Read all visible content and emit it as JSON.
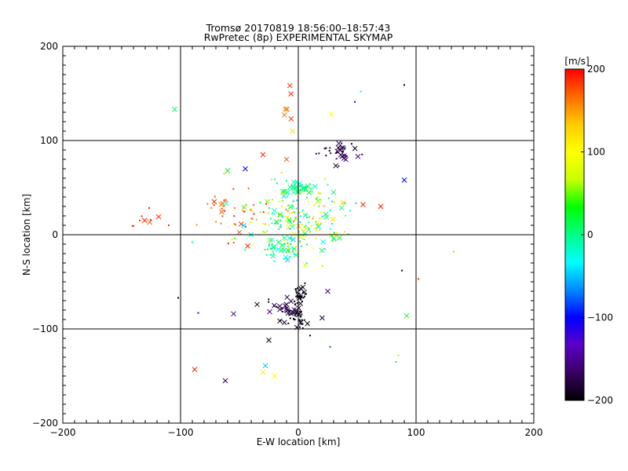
{
  "chart_data": {
    "type": "scatter",
    "title": "Tromsø 20170819 18:56:00–18:57:43",
    "subtitle": "RwPretec (8p) EXPERIMENTAL SKYMAP",
    "xlabel": "E-W location [km]",
    "ylabel": "N-S location [km]",
    "xlim": [
      -200,
      200
    ],
    "ylim": [
      -200,
      200
    ],
    "xticks": [
      "−200",
      "−100",
      "0",
      "100",
      "200"
    ],
    "xtick_values": [
      -200,
      -100,
      0,
      100,
      200
    ],
    "yticks": [
      "−200",
      "−100",
      "0",
      "100",
      "200"
    ],
    "ytick_values": [
      -200,
      -100,
      0,
      100,
      200
    ],
    "grid": true,
    "colorbar": {
      "label": "[m/s]",
      "range": [
        -200,
        200
      ],
      "ticks": [
        "200",
        "100",
        "0",
        "−100",
        "−200"
      ],
      "tick_values": [
        200,
        100,
        0,
        -100,
        -200
      ],
      "colors": [
        "#ff0000",
        "#ff6a00",
        "#ffcc00",
        "#ffff00",
        "#c8ff00",
        "#00ff00",
        "#00ff88",
        "#00ffff",
        "#0088ff",
        "#0000ff",
        "#5a00c8",
        "#3a0060",
        "#000000"
      ]
    },
    "clusters": [
      {
        "center": [
          -10,
          145
        ],
        "spread": [
          3,
          13
        ],
        "value_range": [
          150,
          200
        ],
        "count_cross": 6,
        "count_dot": 0
      },
      {
        "center": [
          33,
          87
        ],
        "spread": [
          9,
          5
        ],
        "value_range": [
          -200,
          -150
        ],
        "count_cross": 14,
        "count_dot": 20
      },
      {
        "center": [
          0,
          50
        ],
        "spread": [
          6,
          3
        ],
        "value_range": [
          -20,
          20
        ],
        "count_cross": 20,
        "count_dot": 10
      },
      {
        "center": [
          -55,
          25
        ],
        "spread": [
          16,
          14
        ],
        "value_range": [
          150,
          200
        ],
        "count_cross": 6,
        "count_dot": 34
      },
      {
        "center": [
          0,
          15
        ],
        "spread": [
          20,
          20
        ],
        "value_range": [
          -50,
          150
        ],
        "count_cross": 48,
        "count_dot": 150
      },
      {
        "center": [
          -16,
          -15
        ],
        "spread": [
          6,
          5
        ],
        "value_range": [
          -40,
          20
        ],
        "count_cross": 10,
        "count_dot": 24
      },
      {
        "center": [
          -10,
          -80
        ],
        "spread": [
          6,
          5
        ],
        "value_range": [
          -200,
          -150
        ],
        "count_cross": 18,
        "count_dot": 16
      },
      {
        "center": [
          2,
          -65
        ],
        "spread": [
          3,
          7
        ],
        "value_range": [
          -200,
          -185
        ],
        "count_cross": 6,
        "count_dot": 30
      },
      {
        "center": [
          0,
          -90
        ],
        "spread": [
          6,
          4
        ],
        "value_range": [
          -200,
          -180
        ],
        "count_cross": 8,
        "count_dot": 18
      },
      {
        "center": [
          -130,
          22
        ],
        "spread": [
          10,
          8
        ],
        "value_range": [
          170,
          200
        ],
        "count_cross": 3,
        "count_dot": 6
      }
    ],
    "isolated_points": [
      {
        "x": -105,
        "y": 133,
        "v": 10,
        "marker": "x"
      },
      {
        "x": 90,
        "y": 58,
        "v": -100,
        "marker": "x"
      },
      {
        "x": 92,
        "y": -86,
        "v": 30,
        "marker": "x"
      },
      {
        "x": -88,
        "y": -143,
        "v": 190,
        "marker": "x"
      },
      {
        "x": -62,
        "y": -155,
        "v": -170,
        "marker": "x"
      },
      {
        "x": -30,
        "y": -146,
        "v": 110,
        "marker": "x"
      },
      {
        "x": -28,
        "y": -139,
        "v": -50,
        "marker": "x"
      },
      {
        "x": -20,
        "y": -150,
        "v": 100,
        "marker": "x"
      },
      {
        "x": -25,
        "y": -112,
        "v": -200,
        "marker": "x"
      },
      {
        "x": -35,
        "y": -74,
        "v": -200,
        "marker": "x"
      },
      {
        "x": -55,
        "y": -84,
        "v": -160,
        "marker": "x"
      },
      {
        "x": -60,
        "y": 68,
        "v": 30,
        "marker": "x"
      },
      {
        "x": -45,
        "y": 70,
        "v": -100,
        "marker": "x"
      },
      {
        "x": -30,
        "y": 85,
        "v": 190,
        "marker": "x"
      },
      {
        "x": -10,
        "y": 80,
        "v": 170,
        "marker": "x"
      },
      {
        "x": 55,
        "y": 32,
        "v": 190,
        "marker": "x"
      },
      {
        "x": 70,
        "y": 30,
        "v": 190,
        "marker": "x"
      },
      {
        "x": 28,
        "y": 128,
        "v": 100,
        "marker": "x"
      },
      {
        "x": -5,
        "y": 110,
        "v": 120,
        "marker": "x"
      },
      {
        "x": -43,
        "y": -12,
        "v": 190,
        "marker": "x"
      },
      {
        "x": 25,
        "y": -60,
        "v": -160,
        "marker": "x"
      },
      {
        "x": 132,
        "y": -18,
        "v": 140,
        "marker": "dot"
      },
      {
        "x": 102,
        "y": -47,
        "v": 190,
        "marker": "dot"
      },
      {
        "x": 88,
        "y": -38,
        "v": -200,
        "marker": "dot"
      },
      {
        "x": 85,
        "y": -128,
        "v": 60,
        "marker": "dot"
      },
      {
        "x": 83,
        "y": -135,
        "v": 20,
        "marker": "dot"
      },
      {
        "x": 90,
        "y": 159,
        "v": -200,
        "marker": "dot"
      },
      {
        "x": 53,
        "y": 152,
        "v": -10,
        "marker": "dot"
      },
      {
        "x": 48,
        "y": 141,
        "v": -110,
        "marker": "dot"
      },
      {
        "x": -102,
        "y": -67,
        "v": -200,
        "marker": "dot"
      },
      {
        "x": -85,
        "y": -83,
        "v": -150,
        "marker": "dot"
      },
      {
        "x": -90,
        "y": -8,
        "v": -10,
        "marker": "dot"
      },
      {
        "x": -110,
        "y": 10,
        "v": 190,
        "marker": "dot"
      },
      {
        "x": 27,
        "y": -119,
        "v": -80,
        "marker": "dot"
      },
      {
        "x": 10,
        "y": -107,
        "v": -200,
        "marker": "dot"
      }
    ]
  }
}
